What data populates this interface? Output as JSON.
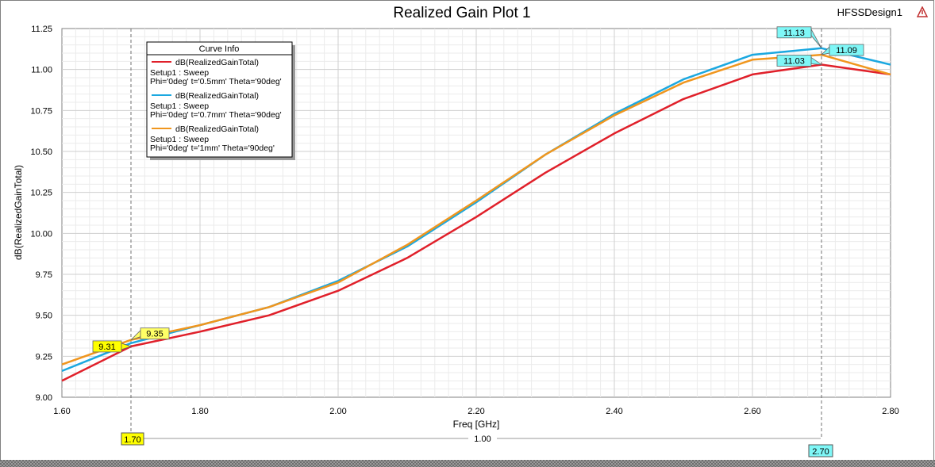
{
  "header": {
    "design_name": "HFSSDesign1"
  },
  "legend": {
    "title": "Curve Info",
    "entries": [
      {
        "name": "dB(RealizedGainTotal)",
        "line2": "Setup1 : Sweep",
        "line3": "Phi='0deg' t='0.5mm' Theta='90deg'"
      },
      {
        "name": "dB(RealizedGainTotal)",
        "line2": "Setup1 : Sweep",
        "line3": "Phi='0deg' t='0.7mm' Theta='90deg'"
      },
      {
        "name": "dB(RealizedGainTotal)",
        "line2": "Setup1 : Sweep",
        "line3": "Phi='0deg' t='1mm' Theta='90deg'"
      }
    ]
  },
  "markers": {
    "x1_label": "1.70",
    "x2_label": "2.70",
    "delta_label": "1.00",
    "x1": 1.7,
    "x2": 2.7,
    "value_labels": [
      {
        "text": "9.31",
        "x": 1.7,
        "y": 9.31,
        "color": "#ffff00"
      },
      {
        "text": "9.35",
        "x": 1.7,
        "y": 9.35,
        "color": "#ffff66"
      },
      {
        "text": "11.13",
        "x": 2.7,
        "y": 11.13,
        "color": "#7ff7f7"
      },
      {
        "text": "11.09",
        "x": 2.7,
        "y": 11.09,
        "color": "#7ff7f7"
      },
      {
        "text": "11.03",
        "x": 2.7,
        "y": 11.03,
        "color": "#7ff7f7"
      }
    ]
  },
  "chart_data": {
    "type": "line",
    "title": "Realized Gain Plot 1",
    "xlabel": "Freq [GHz]",
    "ylabel": "dB(RealizedGainTotal)",
    "xlim": [
      1.6,
      2.8
    ],
    "ylim": [
      9.0,
      11.25
    ],
    "xticks": [
      "1.60",
      "1.80",
      "2.00",
      "2.20",
      "2.40",
      "2.60",
      "2.80"
    ],
    "yticks": [
      "9.00",
      "9.25",
      "9.50",
      "9.75",
      "10.00",
      "10.25",
      "10.50",
      "10.75",
      "11.00",
      "11.25"
    ],
    "grid": true,
    "legend_position": "top-left",
    "series": [
      {
        "color": "#e0202a",
        "x": [
          1.6,
          1.7,
          1.8,
          1.9,
          2.0,
          2.1,
          2.2,
          2.3,
          2.4,
          2.5,
          2.6,
          2.7,
          2.8
        ],
        "y": [
          9.1,
          9.31,
          9.4,
          9.5,
          9.65,
          9.85,
          10.1,
          10.37,
          10.61,
          10.82,
          10.97,
          11.03,
          10.97
        ]
      },
      {
        "color": "#1ba8e0",
        "x": [
          1.6,
          1.7,
          1.8,
          1.9,
          2.0,
          2.1,
          2.2,
          2.3,
          2.4,
          2.5,
          2.6,
          2.7,
          2.8
        ],
        "y": [
          9.16,
          9.33,
          9.44,
          9.55,
          9.71,
          9.92,
          10.19,
          10.48,
          10.73,
          10.94,
          11.09,
          11.13,
          11.03
        ]
      },
      {
        "color": "#f0961e",
        "x": [
          1.6,
          1.7,
          1.8,
          1.9,
          2.0,
          2.1,
          2.2,
          2.3,
          2.4,
          2.5,
          2.6,
          2.7,
          2.8
        ],
        "y": [
          9.2,
          9.35,
          9.44,
          9.55,
          9.7,
          9.93,
          10.2,
          10.48,
          10.72,
          10.92,
          11.06,
          11.09,
          10.97
        ]
      }
    ]
  }
}
